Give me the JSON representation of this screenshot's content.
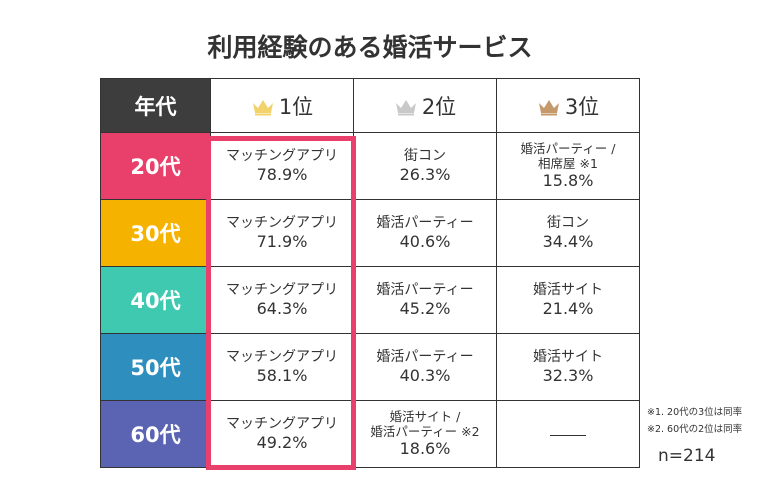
{
  "title": "利用経験のある婚活サービス",
  "header": {
    "age_label": "年代",
    "rank_labels": [
      "1位",
      "2位",
      "3位"
    ],
    "crown_colors": [
      "#f2d36b",
      "#c9c9c9",
      "#c49a6c"
    ]
  },
  "highlight_color": "#e8406a",
  "chart_data": {
    "type": "table",
    "title": "利用経験のある婚活サービス",
    "columns": [
      "年代",
      "1位",
      "2位",
      "3位"
    ],
    "rows": [
      {
        "age": "20代",
        "color": "#e8406a",
        "ranks": [
          {
            "service": "マッチングアプリ",
            "percent": "78.9%"
          },
          {
            "service": "街コン",
            "percent": "26.3%"
          },
          {
            "service": "婚活パーティー /\n相席屋 ※1",
            "percent": "15.8%"
          }
        ]
      },
      {
        "age": "30代",
        "color": "#f5b300",
        "ranks": [
          {
            "service": "マッチングアプリ",
            "percent": "71.9%"
          },
          {
            "service": "婚活パーティー",
            "percent": "40.6%"
          },
          {
            "service": "街コン",
            "percent": "34.4%"
          }
        ]
      },
      {
        "age": "40代",
        "color": "#3fc9b0",
        "ranks": [
          {
            "service": "マッチングアプリ",
            "percent": "64.3%"
          },
          {
            "service": "婚活パーティー",
            "percent": "45.2%"
          },
          {
            "service": "婚活サイト",
            "percent": "21.4%"
          }
        ]
      },
      {
        "age": "50代",
        "color": "#2e8fbf",
        "ranks": [
          {
            "service": "マッチングアプリ",
            "percent": "58.1%"
          },
          {
            "service": "婚活パーティー",
            "percent": "40.3%"
          },
          {
            "service": "婚活サイト",
            "percent": "32.3%"
          }
        ]
      },
      {
        "age": "60代",
        "color": "#5b63b3",
        "ranks": [
          {
            "service": "マッチングアプリ",
            "percent": "49.2%"
          },
          {
            "service": "婚活サイト /\n婚活パーティー ※2",
            "percent": "18.6%"
          },
          {
            "service": "",
            "percent": ""
          }
        ]
      }
    ]
  },
  "notes": [
    "※1. 20代の3位は同率",
    "※2. 60代の2位は同率"
  ],
  "sample_size": "n=214"
}
